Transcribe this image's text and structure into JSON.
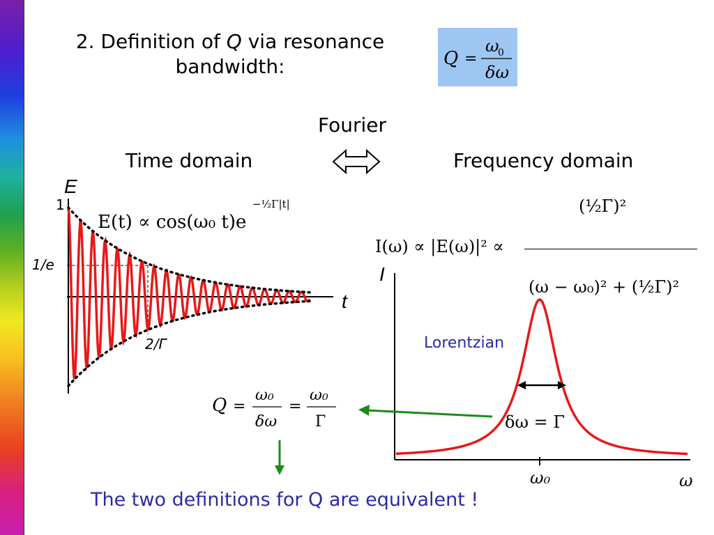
{
  "title": {
    "prefix": "2. Definition of ",
    "q": "Q",
    "suffix": " via resonance",
    "line2": "bandwidth:"
  },
  "header_formula": {
    "lhs": "Q",
    "eq": "=",
    "num": "ω",
    "num_sub": "0",
    "den": "δω"
  },
  "labels": {
    "fourier": "Fourier",
    "time_domain": "Time domain",
    "frequency_domain": "Frequency domain",
    "arrow": "⟺"
  },
  "time_plot": {
    "axis_y": "E",
    "axis_x": "t",
    "tick_1": "1",
    "tick_1e": "1/e",
    "tick_2g": "2/Γ",
    "formula": "E(t) ∝ cos(ω₀ t)e",
    "exponent": "−½Γ|t|"
  },
  "freq_plot": {
    "axis_y": "I",
    "axis_x": "ω",
    "tick_w0": "ω₀",
    "lorentzian": "Lorentzian",
    "width_label": "δω = Γ",
    "formula_lhs": "I(ω) ∝ |E(ω)|² ∝",
    "formula_num": "(½Γ)²",
    "formula_den": "(ω − ω₀)² + (½Γ)²"
  },
  "q_result": {
    "lhs": "Q",
    "mid_num": "ω₀",
    "mid_den": "δω",
    "rhs_num": "ω₀",
    "rhs_den": "Γ"
  },
  "conclusion": "The two definitions for Q are equivalent !",
  "colors": {
    "curve": "#e81818",
    "accent_blue": "#2a2aa6",
    "arrow_green": "#1a8a1a",
    "box_blue": "#9ec6f2"
  }
}
